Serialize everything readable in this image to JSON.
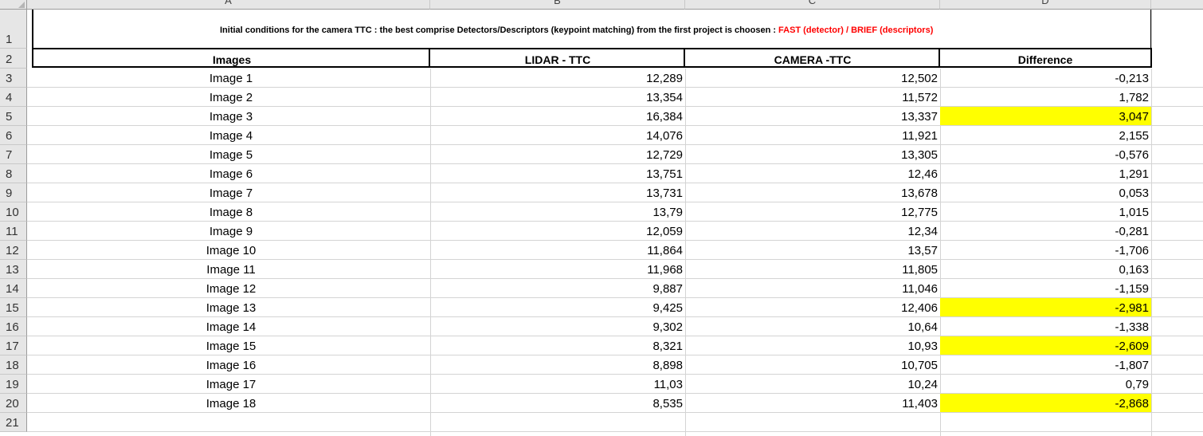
{
  "columns": [
    "A",
    "B",
    "C",
    "D"
  ],
  "row_numbers": [
    "1",
    "2",
    "3",
    "4",
    "5",
    "6",
    "7",
    "8",
    "9",
    "10",
    "11",
    "12",
    "13",
    "14",
    "15",
    "16",
    "17",
    "18",
    "19",
    "20",
    "21"
  ],
  "title": {
    "text": "Initial conditions for the camera TTC :  the best comprise Detectors/Descriptors (keypoint matching) from the first project is choosen :",
    "highlight": "FAST (detector) / BRIEF (descriptors)"
  },
  "table": {
    "headers": [
      "Images",
      "LIDAR - TTC",
      "CAMERA -TTC",
      "Difference"
    ],
    "rows": [
      {
        "image": "Image 1",
        "lidar": "12,289",
        "camera": "12,502",
        "diff": "-0,213",
        "highlight": false
      },
      {
        "image": "Image 2",
        "lidar": "13,354",
        "camera": "11,572",
        "diff": "1,782",
        "highlight": false
      },
      {
        "image": "Image 3",
        "lidar": "16,384",
        "camera": "13,337",
        "diff": "3,047",
        "highlight": true
      },
      {
        "image": "Image 4",
        "lidar": "14,076",
        "camera": "11,921",
        "diff": "2,155",
        "highlight": false
      },
      {
        "image": "Image 5",
        "lidar": "12,729",
        "camera": "13,305",
        "diff": "-0,576",
        "highlight": false
      },
      {
        "image": "Image 6",
        "lidar": "13,751",
        "camera": "12,46",
        "diff": "1,291",
        "highlight": false
      },
      {
        "image": "Image 7",
        "lidar": "13,731",
        "camera": "13,678",
        "diff": "0,053",
        "highlight": false
      },
      {
        "image": "Image 8",
        "lidar": "13,79",
        "camera": "12,775",
        "diff": "1,015",
        "highlight": false
      },
      {
        "image": "Image 9",
        "lidar": "12,059",
        "camera": "12,34",
        "diff": "-0,281",
        "highlight": false
      },
      {
        "image": "Image 10",
        "lidar": "11,864",
        "camera": "13,57",
        "diff": "-1,706",
        "highlight": false
      },
      {
        "image": "Image 11",
        "lidar": "11,968",
        "camera": "11,805",
        "diff": "0,163",
        "highlight": false
      },
      {
        "image": "Image 12",
        "lidar": "9,887",
        "camera": "11,046",
        "diff": "-1,159",
        "highlight": false
      },
      {
        "image": "Image 13",
        "lidar": "9,425",
        "camera": "12,406",
        "diff": "-2,981",
        "highlight": true
      },
      {
        "image": "Image 14",
        "lidar": "9,302",
        "camera": "10,64",
        "diff": "-1,338",
        "highlight": false
      },
      {
        "image": "Image 15",
        "lidar": "8,321",
        "camera": "10,93",
        "diff": "-2,609",
        "highlight": true
      },
      {
        "image": "Image 16",
        "lidar": "8,898",
        "camera": "10,705",
        "diff": "-1,807",
        "highlight": false
      },
      {
        "image": "Image 17",
        "lidar": "11,03",
        "camera": "10,24",
        "diff": "0,79",
        "highlight": false
      },
      {
        "image": "Image 18",
        "lidar": "8,535",
        "camera": "11,403",
        "diff": "-2,868",
        "highlight": true
      }
    ]
  },
  "colors": {
    "highlight": "#ffff00",
    "title_highlight": "#ff0000"
  }
}
